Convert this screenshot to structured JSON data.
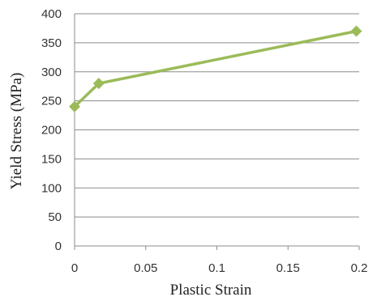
{
  "chart_data": {
    "type": "line",
    "title": "",
    "xlabel": "Plastic Strain",
    "ylabel": "Yield Stress (MPa)",
    "xlim": [
      0,
      0.2
    ],
    "ylim": [
      0,
      400
    ],
    "x_ticks": [
      "0",
      "0.05",
      "0.1",
      "0.15",
      "0.2"
    ],
    "y_ticks": [
      "0",
      "50",
      "100",
      "150",
      "200",
      "250",
      "300",
      "350",
      "400"
    ],
    "grid": "horizontal",
    "legend": "none",
    "series": [
      {
        "x": [
          0,
          0.017,
          0.198
        ],
        "y": [
          240,
          280,
          370
        ],
        "color": "#9bbb59",
        "marker": "diamond"
      }
    ]
  }
}
